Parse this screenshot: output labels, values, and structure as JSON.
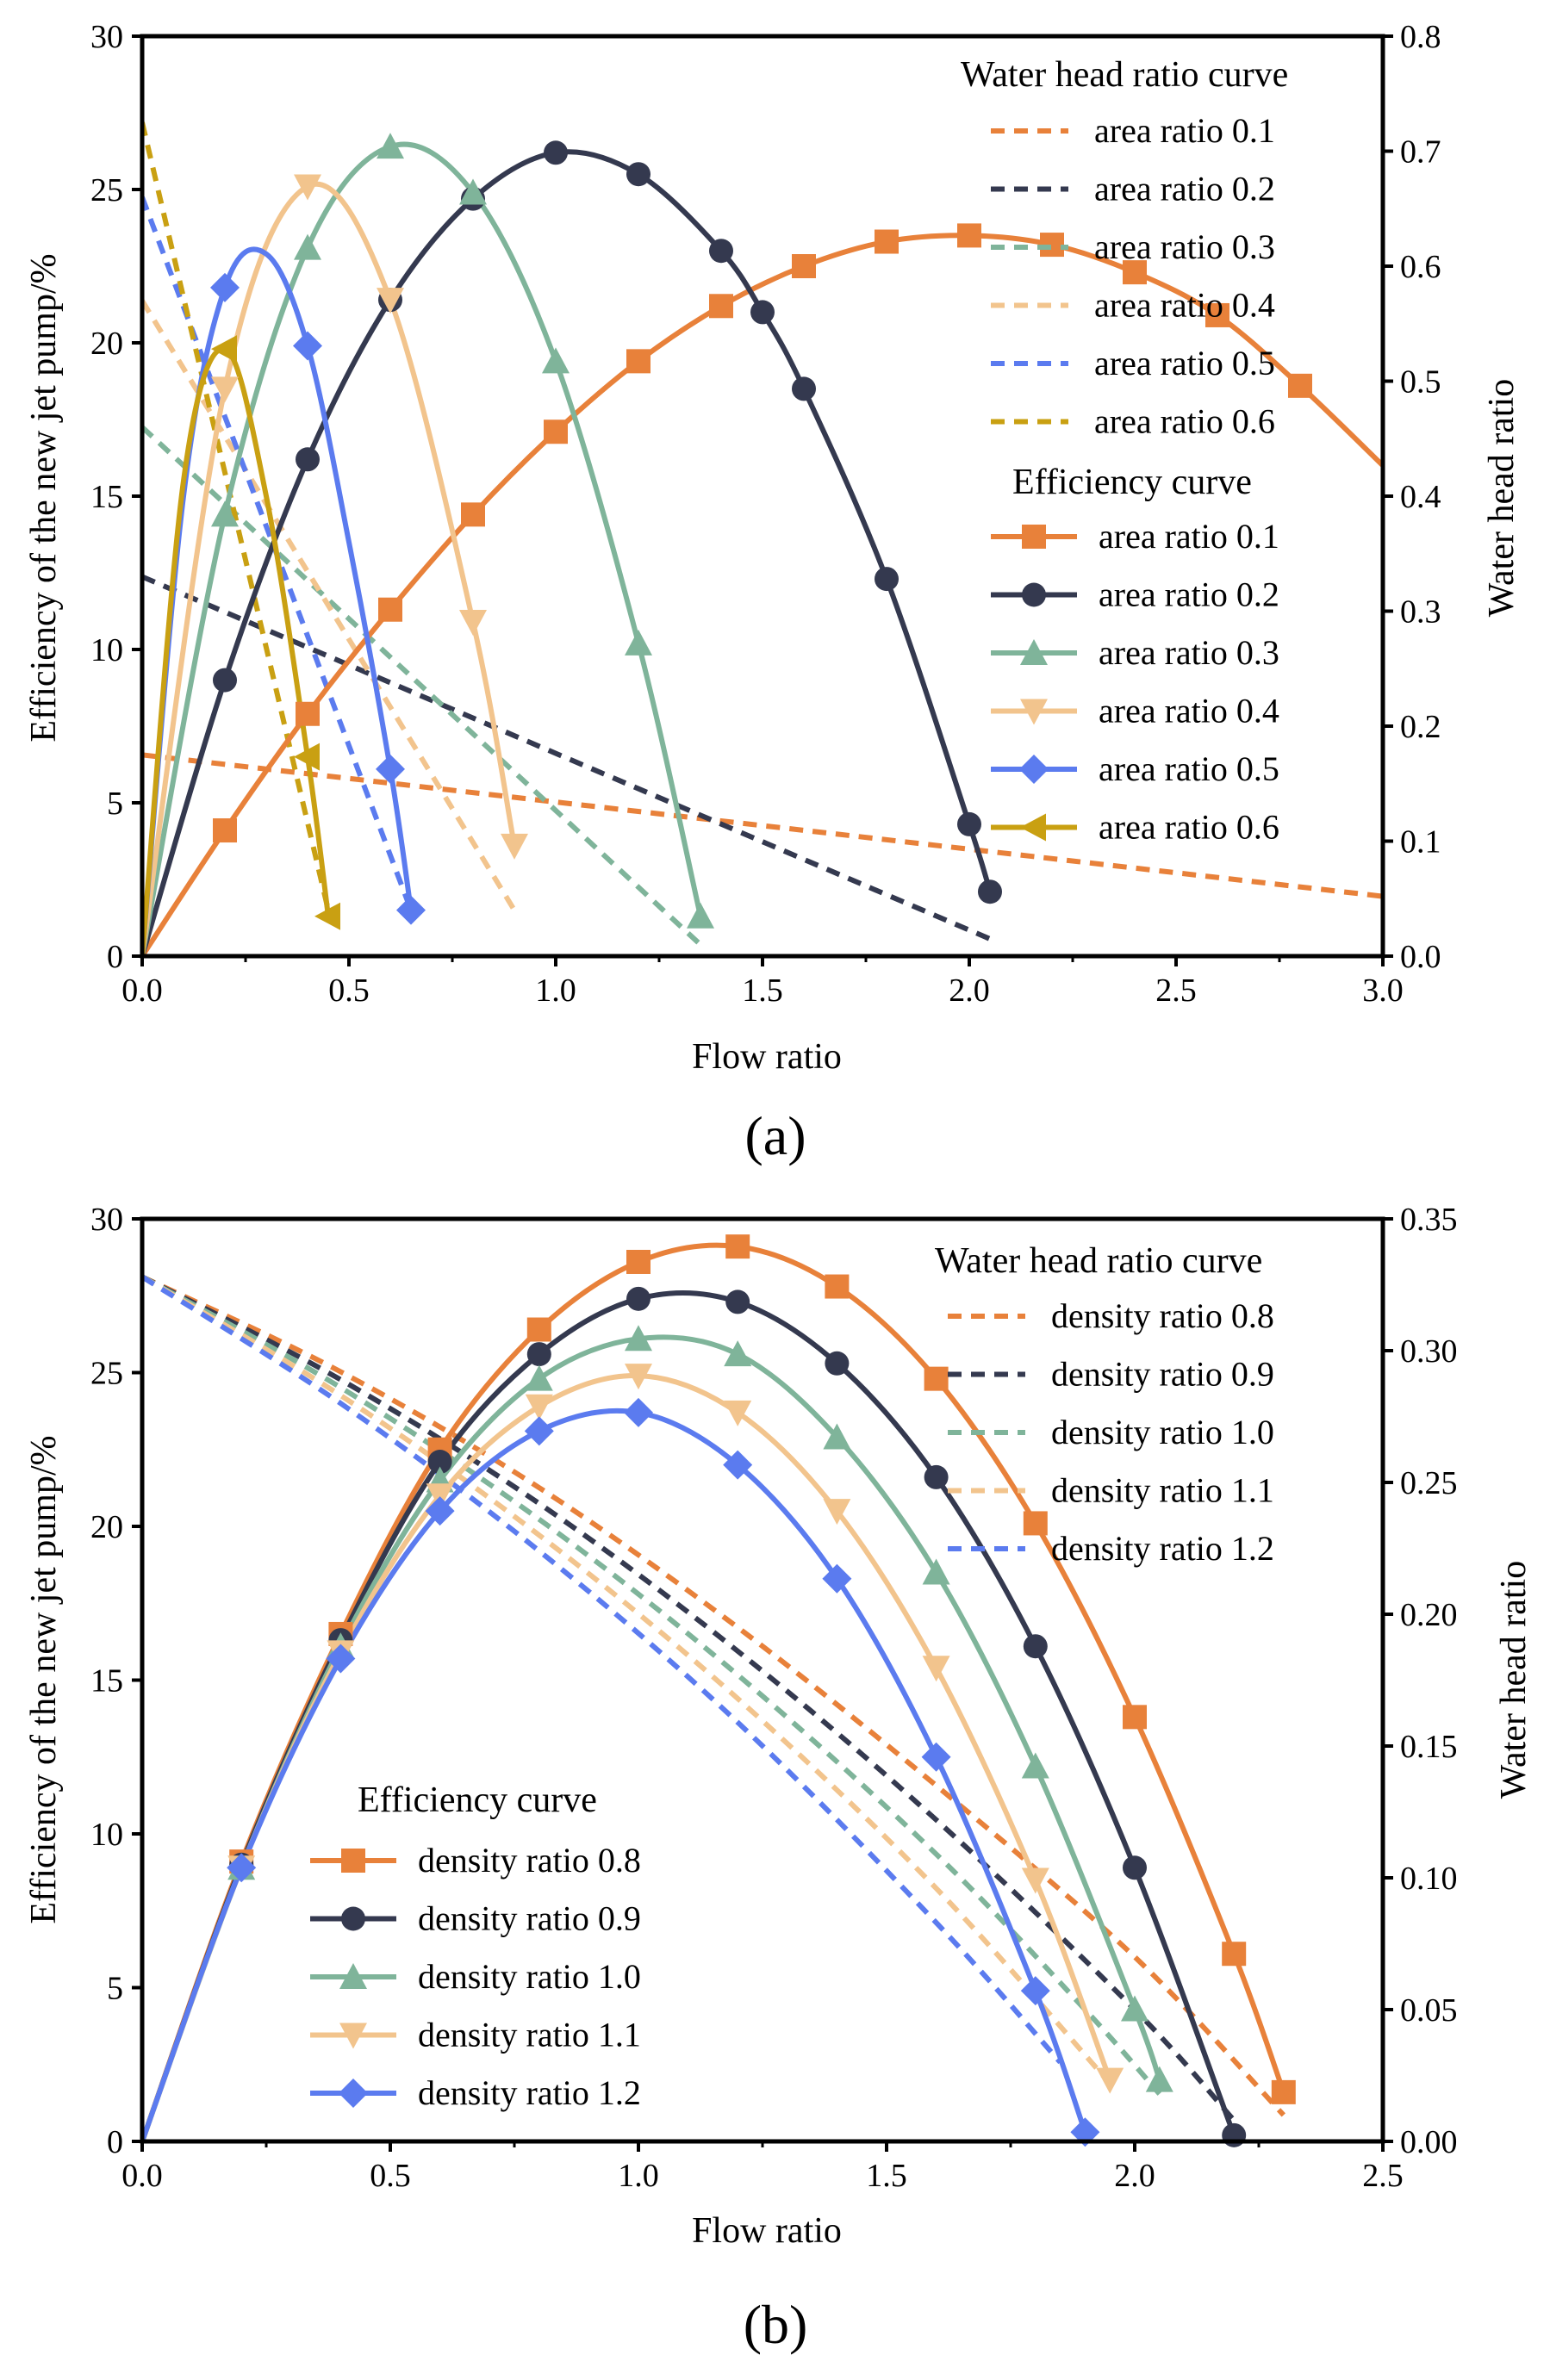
{
  "chart_data": [
    {
      "panel": "a",
      "panel_label": "(a)",
      "type": "line",
      "xlabel": "Flow ratio",
      "ylabel_left": "Efficiency of the new jet pump/%",
      "ylabel_right": "Water head ratio",
      "xlim": [
        0,
        3.0
      ],
      "ylim_left": [
        0,
        30
      ],
      "ylim_right": [
        0,
        0.8
      ],
      "x_ticks": [
        0,
        0.5,
        1.0,
        1.5,
        2.0,
        2.5,
        3.0
      ],
      "x_tick_labels": [
        "0.0",
        "0.5",
        "1.0",
        "1.5",
        "2.0",
        "2.5",
        "3.0"
      ],
      "y_left_ticks": [
        0,
        5,
        10,
        15,
        20,
        25,
        30
      ],
      "y_left_tick_labels": [
        "0",
        "5",
        "10",
        "15",
        "20",
        "25",
        "30"
      ],
      "y_right_ticks": [
        0,
        0.1,
        0.2,
        0.3,
        0.4,
        0.5,
        0.6,
        0.7,
        0.8
      ],
      "y_right_tick_labels": [
        "0.0",
        "0.1",
        "0.2",
        "0.3",
        "0.4",
        "0.5",
        "0.6",
        "0.7",
        "0.8"
      ],
      "legend_heading_head": "Water head ratio curve",
      "legend_heading_eff": "Efficiency curve",
      "head_series": [
        {
          "name": "area ratio 0.1",
          "color": "#E8813A",
          "x": [
            0,
            3.0
          ],
          "y": [
            0.175,
            0.052
          ]
        },
        {
          "name": "area ratio 0.2",
          "color": "#34394F",
          "x": [
            0,
            2.05
          ],
          "y": [
            0.33,
            0.015
          ]
        },
        {
          "name": "area ratio 0.3",
          "color": "#7FB49A",
          "x": [
            0,
            1.35
          ],
          "y": [
            0.46,
            0.01
          ]
        },
        {
          "name": "area ratio 0.4",
          "color": "#F2C48D",
          "x": [
            0,
            0.9
          ],
          "y": [
            0.57,
            0.04
          ]
        },
        {
          "name": "area ratio 0.5",
          "color": "#5B7BEF",
          "x": [
            0,
            0.65
          ],
          "y": [
            0.66,
            0.04
          ]
        },
        {
          "name": "area ratio 0.6",
          "color": "#C9A012",
          "x": [
            0,
            0.45
          ],
          "y": [
            0.725,
            0.04
          ]
        }
      ],
      "eff_series": [
        {
          "name": "area ratio 0.1",
          "color": "#E8813A",
          "marker": "square",
          "x": [
            0,
            0.2,
            0.4,
            0.6,
            0.8,
            1.0,
            1.2,
            1.4,
            1.6,
            1.8,
            2.0,
            2.2,
            2.4,
            2.6,
            2.8,
            3.0
          ],
          "y": [
            0,
            4.1,
            7.9,
            11.3,
            14.4,
            17.1,
            19.4,
            21.2,
            22.5,
            23.3,
            23.5,
            23.2,
            22.3,
            20.9,
            18.6,
            16.0
          ],
          "markers_x": [
            0.2,
            0.4,
            0.6,
            0.8,
            1.0,
            1.2,
            1.4,
            1.6,
            1.8,
            2.0,
            2.2,
            2.4,
            2.6,
            2.8
          ]
        },
        {
          "name": "area ratio 0.2",
          "color": "#34394F",
          "marker": "circle",
          "x": [
            0,
            0.2,
            0.4,
            0.6,
            0.8,
            1.0,
            1.2,
            1.4,
            1.5,
            1.6,
            1.8,
            2.0,
            2.05
          ],
          "y": [
            0,
            9.0,
            16.2,
            21.4,
            24.7,
            26.2,
            25.5,
            23.0,
            21.0,
            18.5,
            12.3,
            4.3,
            2.1
          ],
          "markers_x": [
            0.2,
            0.4,
            0.6,
            0.8,
            1.0,
            1.2,
            1.4,
            1.5,
            1.6,
            1.8,
            2.0,
            2.05
          ]
        },
        {
          "name": "area ratio 0.3",
          "color": "#7FB49A",
          "marker": "triangle-up",
          "x": [
            0,
            0.2,
            0.4,
            0.6,
            0.8,
            1.0,
            1.2,
            1.35
          ],
          "y": [
            0,
            14.4,
            23.1,
            26.4,
            24.9,
            19.4,
            10.2,
            1.3
          ],
          "markers_x": [
            0.2,
            0.4,
            0.6,
            0.8,
            1.0,
            1.2,
            1.35
          ]
        },
        {
          "name": "area ratio 0.4",
          "color": "#F2C48D",
          "marker": "triangle-down",
          "x": [
            0,
            0.2,
            0.4,
            0.6,
            0.8,
            0.9
          ],
          "y": [
            0,
            18.5,
            25.1,
            21.4,
            10.9,
            3.6
          ],
          "markers_x": [
            0.2,
            0.4,
            0.6,
            0.8,
            0.9
          ]
        },
        {
          "name": "area ratio 0.5",
          "color": "#5B7BEF",
          "marker": "diamond",
          "x": [
            0,
            0.1,
            0.2,
            0.3,
            0.4,
            0.5,
            0.6,
            0.65
          ],
          "y": [
            0,
            15.0,
            21.8,
            22.9,
            19.9,
            13.5,
            6.1,
            1.5
          ],
          "markers_x": [
            0.2,
            0.4,
            0.6,
            0.65
          ]
        },
        {
          "name": "area ratio 0.6",
          "color": "#C9A012",
          "marker": "triangle-left",
          "x": [
            0,
            0.1,
            0.2,
            0.3,
            0.4,
            0.45
          ],
          "y": [
            0,
            15.5,
            19.8,
            15.0,
            6.5,
            1.3
          ],
          "markers_x": [
            0.2,
            0.4,
            0.45
          ]
        }
      ]
    },
    {
      "panel": "b",
      "panel_label": "(b)",
      "type": "line",
      "xlabel": "Flow ratio",
      "ylabel_left": "Efficiency of the new jet pump/%",
      "ylabel_right": "Water head ratio",
      "xlim": [
        0,
        2.5
      ],
      "ylim_left": [
        0,
        30
      ],
      "ylim_right": [
        0,
        0.35
      ],
      "x_ticks": [
        0,
        0.5,
        1.0,
        1.5,
        2.0,
        2.5
      ],
      "x_tick_labels": [
        "0.0",
        "0.5",
        "1.0",
        "1.5",
        "2.0",
        "2.5"
      ],
      "y_left_ticks": [
        0,
        5,
        10,
        15,
        20,
        25,
        30
      ],
      "y_left_tick_labels": [
        "0",
        "5",
        "10",
        "15",
        "20",
        "25",
        "30"
      ],
      "y_right_ticks": [
        0,
        0.05,
        0.1,
        0.15,
        0.2,
        0.25,
        0.3,
        0.35
      ],
      "y_right_tick_labels": [
        "0.00",
        "0.05",
        "0.10",
        "0.15",
        "0.20",
        "0.25",
        "0.30",
        "0.35"
      ],
      "legend_heading_head": "Water head ratio curve",
      "legend_heading_eff": "Efficiency curve",
      "head_series": [
        {
          "name": "density ratio 0.8",
          "color": "#E8813A",
          "x": [
            0,
            0.4,
            0.8,
            1.2,
            1.6,
            2.0,
            2.3
          ],
          "y": [
            0.328,
            0.292,
            0.248,
            0.195,
            0.135,
            0.07,
            0.01
          ]
        },
        {
          "name": "density ratio 0.9",
          "color": "#34394F",
          "x": [
            0,
            0.4,
            0.8,
            1.2,
            1.6,
            2.0,
            2.2
          ],
          "y": [
            0.328,
            0.289,
            0.242,
            0.186,
            0.122,
            0.05,
            0.008
          ]
        },
        {
          "name": "density ratio 1.0",
          "color": "#7FB49A",
          "x": [
            0,
            0.4,
            0.8,
            1.2,
            1.6,
            1.9,
            2.05
          ],
          "y": [
            0.328,
            0.286,
            0.236,
            0.177,
            0.109,
            0.05,
            0.018
          ]
        },
        {
          "name": "density ratio 1.1",
          "color": "#F2C48D",
          "x": [
            0,
            0.4,
            0.8,
            1.2,
            1.6,
            1.95
          ],
          "y": [
            0.328,
            0.283,
            0.23,
            0.168,
            0.096,
            0.022
          ]
        },
        {
          "name": "density ratio 1.2",
          "color": "#5B7BEF",
          "x": [
            0,
            0.4,
            0.8,
            1.2,
            1.6,
            1.85
          ],
          "y": [
            0.328,
            0.28,
            0.224,
            0.159,
            0.083,
            0.03
          ]
        }
      ],
      "eff_series": [
        {
          "name": "density ratio 0.8",
          "color": "#E8813A",
          "marker": "square",
          "x": [
            0,
            0.2,
            0.4,
            0.6,
            0.8,
            1.0,
            1.2,
            1.4,
            1.6,
            1.8,
            2.0,
            2.2,
            2.3
          ],
          "y": [
            0,
            9.1,
            16.5,
            22.5,
            26.4,
            28.6,
            29.1,
            27.8,
            24.8,
            20.1,
            13.8,
            6.1,
            1.6
          ],
          "markers_x": [
            0.2,
            0.4,
            0.6,
            0.8,
            1.0,
            1.2,
            1.4,
            1.6,
            1.8,
            2.0,
            2.2,
            2.3
          ]
        },
        {
          "name": "density ratio 0.9",
          "color": "#34394F",
          "marker": "circle",
          "x": [
            0,
            0.2,
            0.4,
            0.6,
            0.8,
            1.0,
            1.2,
            1.4,
            1.6,
            1.8,
            2.0,
            2.2
          ],
          "y": [
            0,
            9.0,
            16.3,
            22.1,
            25.6,
            27.4,
            27.3,
            25.3,
            21.6,
            16.1,
            8.9,
            0.2
          ],
          "markers_x": [
            0.2,
            0.4,
            0.6,
            0.8,
            1.0,
            1.2,
            1.4,
            1.6,
            1.8,
            2.0,
            2.2
          ]
        },
        {
          "name": "density ratio 1.0",
          "color": "#7FB49A",
          "marker": "triangle-up",
          "x": [
            0,
            0.2,
            0.4,
            0.6,
            0.8,
            1.0,
            1.2,
            1.4,
            1.6,
            1.8,
            2.0,
            2.05
          ],
          "y": [
            0,
            8.9,
            16.1,
            21.5,
            24.8,
            26.1,
            25.6,
            22.9,
            18.5,
            12.2,
            4.3,
            2.0
          ],
          "markers_x": [
            0.2,
            0.4,
            0.6,
            0.8,
            1.0,
            1.2,
            1.4,
            1.6,
            1.8,
            2.0,
            2.05
          ]
        },
        {
          "name": "density ratio 1.1",
          "color": "#F2C48D",
          "marker": "triangle-down",
          "x": [
            0,
            0.2,
            0.4,
            0.6,
            0.8,
            1.0,
            1.2,
            1.4,
            1.6,
            1.8,
            1.95
          ],
          "y": [
            0,
            8.9,
            15.9,
            21.0,
            23.9,
            24.9,
            23.7,
            20.5,
            15.4,
            8.5,
            2.0
          ],
          "markers_x": [
            0.2,
            0.4,
            0.6,
            0.8,
            1.0,
            1.2,
            1.4,
            1.6,
            1.8,
            1.95
          ]
        },
        {
          "name": "density ratio 1.2",
          "color": "#5B7BEF",
          "marker": "diamond",
          "x": [
            0,
            0.2,
            0.4,
            0.6,
            0.8,
            1.0,
            1.2,
            1.4,
            1.6,
            1.8,
            1.9
          ],
          "y": [
            0,
            8.9,
            15.7,
            20.5,
            23.1,
            23.7,
            22.0,
            18.3,
            12.5,
            4.9,
            0.3
          ],
          "markers_x": [
            0.2,
            0.4,
            0.6,
            0.8,
            1.0,
            1.2,
            1.4,
            1.6,
            1.8,
            1.9
          ]
        }
      ]
    }
  ]
}
